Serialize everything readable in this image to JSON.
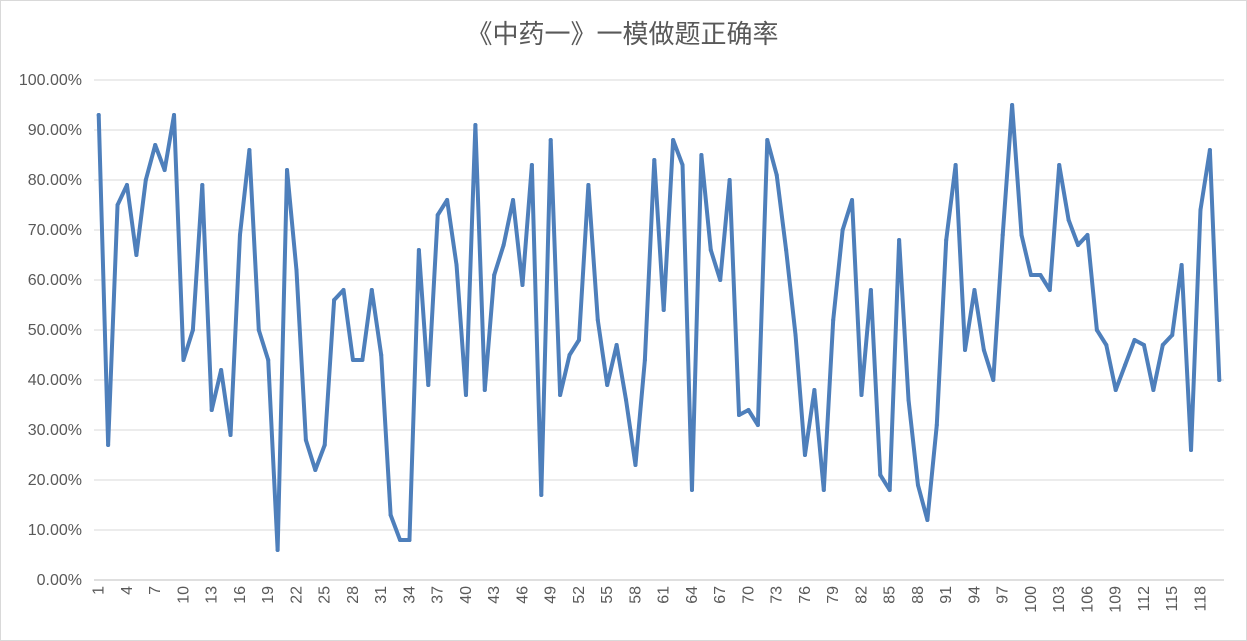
{
  "chart_data": {
    "type": "line",
    "title": "《中药一》一模做题正确率",
    "xlabel": "",
    "ylabel": "",
    "ylim": [
      0,
      1
    ],
    "y_ticks": [
      "0.00%",
      "10.00%",
      "20.00%",
      "30.00%",
      "40.00%",
      "50.00%",
      "60.00%",
      "70.00%",
      "80.00%",
      "90.00%",
      "100.00%"
    ],
    "grid": true,
    "legend": "none",
    "x_tick_labels": [
      "1",
      "4",
      "7",
      "10",
      "13",
      "16",
      "19",
      "22",
      "25",
      "28",
      "31",
      "34",
      "37",
      "40",
      "43",
      "46",
      "49",
      "52",
      "55",
      "58",
      "61",
      "64",
      "67",
      "70",
      "73",
      "76",
      "79",
      "82",
      "85",
      "88",
      "91",
      "94",
      "97",
      "100",
      "103",
      "106",
      "109",
      "112",
      "115",
      "118"
    ],
    "series": [
      {
        "color": "#4e7fbb",
        "values": [
          0.93,
          0.27,
          0.75,
          0.79,
          0.65,
          0.8,
          0.87,
          0.82,
          0.93,
          0.44,
          0.5,
          0.79,
          0.34,
          0.42,
          0.29,
          0.69,
          0.86,
          0.5,
          0.44,
          0.06,
          0.82,
          0.62,
          0.28,
          0.22,
          0.27,
          0.56,
          0.58,
          0.44,
          0.44,
          0.58,
          0.45,
          0.13,
          0.08,
          0.08,
          0.66,
          0.39,
          0.73,
          0.76,
          0.63,
          0.37,
          0.91,
          0.38,
          0.61,
          0.67,
          0.76,
          0.59,
          0.83,
          0.17,
          0.88,
          0.37,
          0.45,
          0.48,
          0.79,
          0.52,
          0.39,
          0.47,
          0.36,
          0.23,
          0.44,
          0.84,
          0.54,
          0.88,
          0.83,
          0.18,
          0.85,
          0.66,
          0.6,
          0.8,
          0.33,
          0.34,
          0.31,
          0.88,
          0.81,
          0.66,
          0.49,
          0.25,
          0.38,
          0.18,
          0.52,
          0.7,
          0.76,
          0.37,
          0.58,
          0.21,
          0.18,
          0.68,
          0.36,
          0.19,
          0.12,
          0.31,
          0.68,
          0.83,
          0.46,
          0.58,
          0.46,
          0.4,
          0.69,
          0.95,
          0.69,
          0.61,
          0.61,
          0.58,
          0.83,
          0.72,
          0.67,
          0.69,
          0.5,
          0.47,
          0.38,
          0.43,
          0.48,
          0.47,
          0.38,
          0.47,
          0.49,
          0.63,
          0.26,
          0.74,
          0.86,
          0.4
        ]
      }
    ]
  }
}
